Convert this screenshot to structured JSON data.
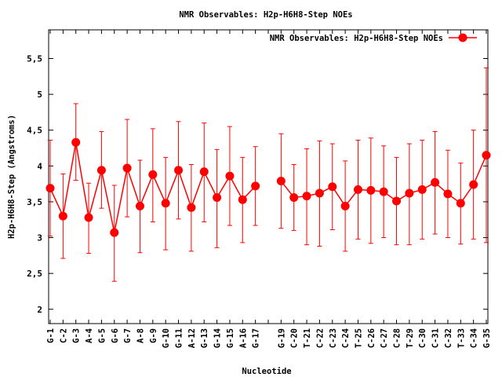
{
  "chart_data": {
    "type": "line",
    "title": "NMR Observables: H2p-H6H8-Step NOEs",
    "xlabel": "Nucleotide",
    "ylabel": "H2p-H6H8-Step (Angstroms)",
    "ylim": [
      1.8,
      5.9
    ],
    "yticks": [
      "2",
      "2.5",
      "3",
      "3.5",
      "4",
      "4.5",
      "5",
      "5.5"
    ],
    "grid": false,
    "legend": {
      "position": "top-right",
      "label": "NMR Observables: H2p-H6H8-Step NOEs"
    },
    "categories": [
      "G-1",
      "C-2",
      "G-3",
      "A-4",
      "G-5",
      "G-6",
      "G-7",
      "A-8",
      "G-9",
      "G-10",
      "G-11",
      "A-12",
      "G-13",
      "G-14",
      "G-15",
      "A-16",
      "G-17",
      "",
      "G-19",
      "C-20",
      "T-21",
      "C-22",
      "C-23",
      "C-24",
      "T-25",
      "C-26",
      "C-27",
      "C-28",
      "T-29",
      "C-30",
      "C-31",
      "C-32",
      "T-33",
      "C-34",
      "G-35"
    ],
    "series": [
      {
        "name": "NMR Observables: H2p-H6H8-Step NOEs",
        "color": "#ff0000",
        "values": [
          3.69,
          3.3,
          4.33,
          3.28,
          3.94,
          3.07,
          3.97,
          3.44,
          3.88,
          3.48,
          3.94,
          3.42,
          3.92,
          3.56,
          3.86,
          3.53,
          3.72,
          null,
          3.79,
          3.56,
          3.58,
          3.62,
          3.71,
          3.44,
          3.67,
          3.66,
          3.64,
          3.51,
          3.62,
          3.67,
          3.77,
          3.61,
          3.48,
          3.74,
          4.15
        ],
        "err_low": [
          3.02,
          2.71,
          3.8,
          2.78,
          3.41,
          2.39,
          3.29,
          2.79,
          3.22,
          2.83,
          3.26,
          2.81,
          3.22,
          2.86,
          3.17,
          2.93,
          3.17,
          null,
          3.13,
          3.1,
          2.9,
          2.88,
          3.11,
          2.81,
          2.98,
          2.92,
          3.0,
          2.9,
          2.9,
          2.98,
          3.05,
          3.0,
          2.91,
          2.98,
          2.93
        ],
        "err_high": [
          4.36,
          3.89,
          4.87,
          3.76,
          4.48,
          3.73,
          4.65,
          4.08,
          4.52,
          4.12,
          4.62,
          4.02,
          4.6,
          4.23,
          4.55,
          4.12,
          4.27,
          null,
          4.45,
          4.02,
          4.24,
          4.35,
          4.31,
          4.07,
          4.36,
          4.39,
          4.28,
          4.12,
          4.31,
          4.36,
          4.48,
          4.22,
          4.04,
          4.5,
          5.37
        ]
      }
    ]
  }
}
